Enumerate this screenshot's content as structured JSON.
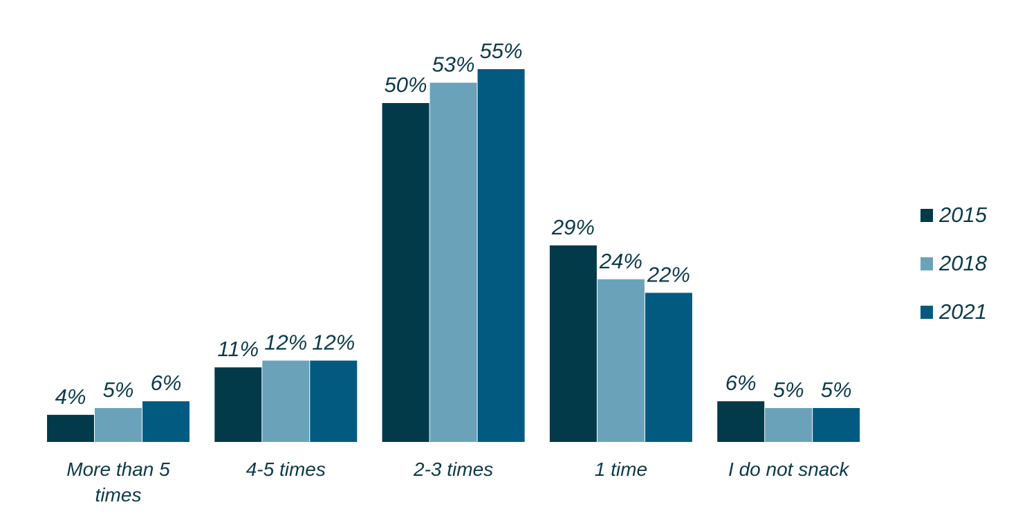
{
  "chart_data": {
    "type": "bar",
    "title": "",
    "xlabel": "",
    "ylabel": "",
    "ylim": [
      0,
      55
    ],
    "grid": false,
    "legend_placement": "right",
    "categories": [
      [
        "More than 5",
        "times"
      ],
      [
        "4-5 times"
      ],
      [
        "2-3 times"
      ],
      [
        "1 time"
      ],
      [
        "I do not snack"
      ]
    ],
    "series": [
      {
        "name": "2015",
        "color": "#023a4a",
        "values": [
          4,
          11,
          50,
          29,
          6
        ]
      },
      {
        "name": "2018",
        "color": "#6aa3b9",
        "values": [
          5,
          12,
          53,
          24,
          5
        ]
      },
      {
        "name": "2021",
        "color": "#025a80",
        "values": [
          6,
          12,
          55,
          22,
          5
        ]
      }
    ],
    "value_suffix": "%"
  }
}
